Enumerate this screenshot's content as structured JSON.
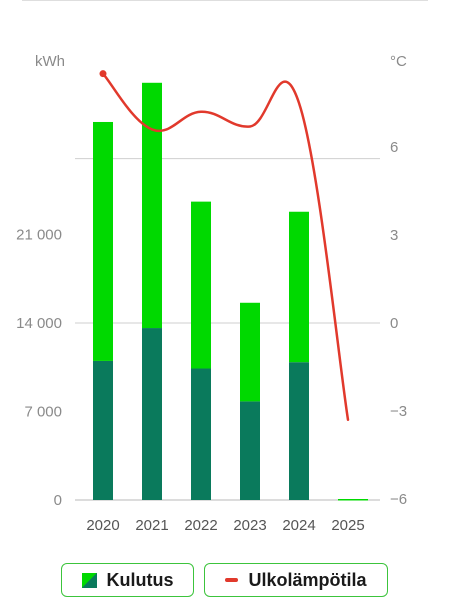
{
  "colors": {
    "bar_top": "#00d900",
    "bar_bottom": "#0a7a5c",
    "line": "#e1392c",
    "grid": "#cfcfcf",
    "axis": "#b9b9b9"
  },
  "chart_data": {
    "type": "bar",
    "left_unit": "kWh",
    "right_unit": "°C",
    "categories": [
      "2020",
      "2021",
      "2022",
      "2023",
      "2024",
      "2025"
    ],
    "left_ticks": [
      "0",
      "7 000",
      "14 000",
      "21 000"
    ],
    "left_tick_values": [
      0,
      7000,
      14000,
      21000
    ],
    "right_ticks": [
      "−6",
      "−3",
      "0",
      "3",
      "6",
      "°C"
    ],
    "right_tick_values": [
      -6,
      -3,
      0,
      3,
      6
    ],
    "ylim_left": [
      0,
      31500
    ],
    "ylim_right": [
      -6,
      9
    ],
    "grid_values_left": [
      14000,
      27000
    ],
    "series": [
      {
        "name": "Kulutus",
        "type": "stacked_bar",
        "bottom": [
          11000,
          13600,
          10400,
          7800,
          10900,
          0
        ],
        "top": [
          18900,
          19400,
          13200,
          7800,
          11900,
          0
        ]
      },
      {
        "name": "Ulkolämpötila",
        "type": "line",
        "values": [
          8.5,
          6.6,
          7.2,
          6.7,
          7.5,
          -3.3
        ]
      }
    ]
  },
  "legend": {
    "kulutus_label": "Kulutus",
    "ulko_label": "Ulkolämpötila"
  }
}
